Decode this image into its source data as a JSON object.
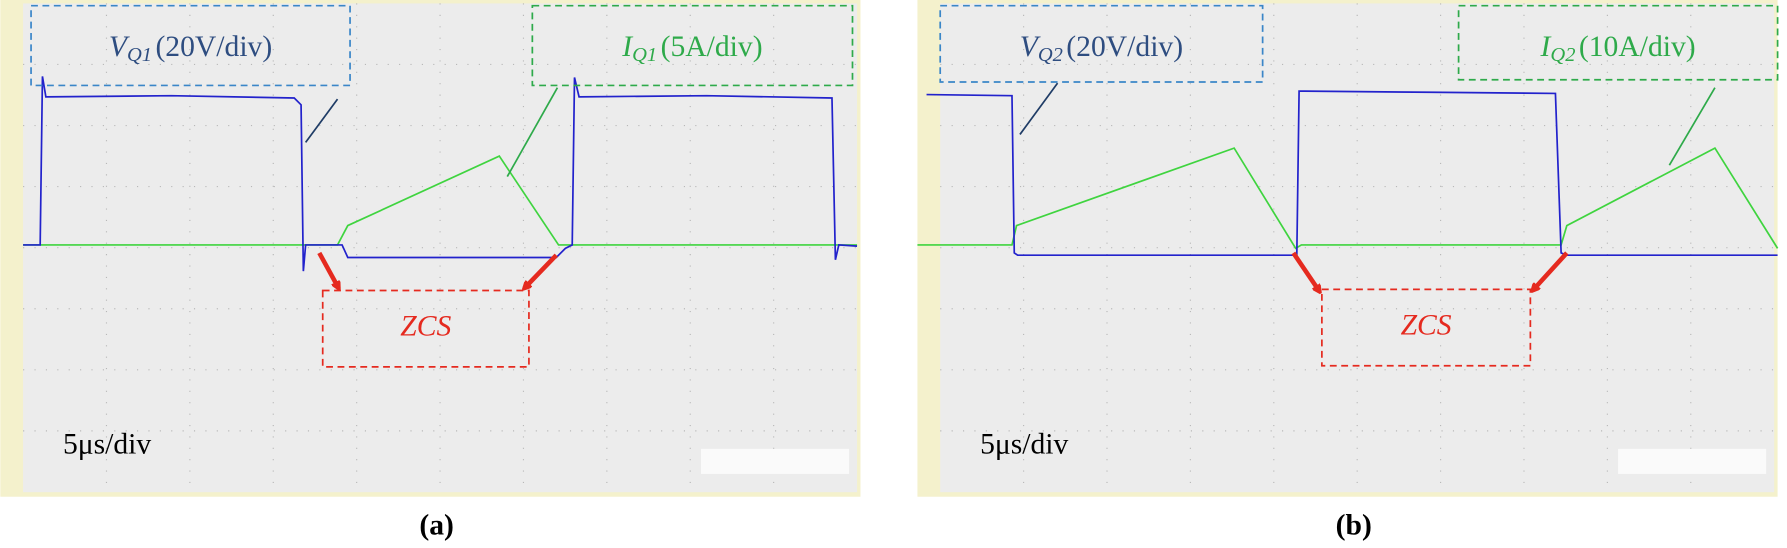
{
  "panels": [
    {
      "caption": "(a)",
      "voltage": {
        "symbol": "V",
        "subscript": "Q1",
        "scale": "(20V/div)"
      },
      "current": {
        "symbol": "I",
        "subscript": "Q1",
        "scale": "(5A/div)"
      },
      "zcs": "ZCS",
      "timebase": "5μs/div"
    },
    {
      "caption": "(b)",
      "voltage": {
        "symbol": "V",
        "subscript": "Q2",
        "scale": "(20V/div)"
      },
      "current": {
        "symbol": "I",
        "subscript": "Q2",
        "scale": "(10A/div)"
      },
      "zcs": "ZCS",
      "timebase": "5μs/div"
    }
  ]
}
